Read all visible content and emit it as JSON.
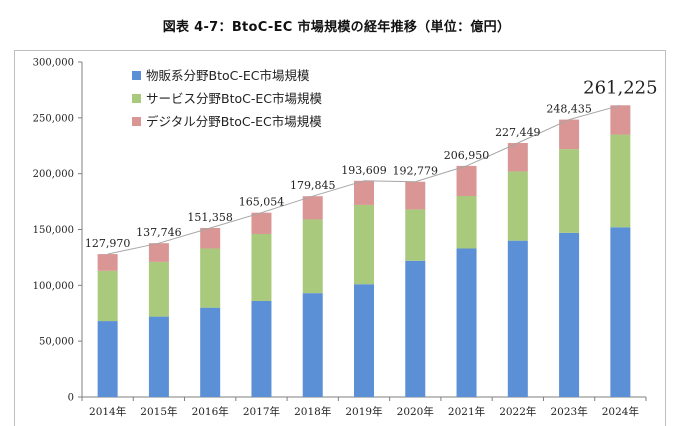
{
  "page_title": "図表 4-7：BtoC-EC 市場規模の経年推移（単位：億円）",
  "chart_data": {
    "type": "bar",
    "stacked": true,
    "title": "図表 4-7：BtoC-EC 市場規模の経年推移（単位：億円）",
    "xlabel": "",
    "ylabel": "",
    "ylim": [
      0,
      300000
    ],
    "yticks": [
      0,
      50000,
      100000,
      150000,
      200000,
      250000,
      300000
    ],
    "ytick_labels": [
      "0",
      "50,000",
      "100,000",
      "150,000",
      "200,000",
      "250,000",
      "300,000"
    ],
    "categories": [
      "2014年",
      "2015年",
      "2016年",
      "2017年",
      "2018年",
      "2019年",
      "2020年",
      "2021年",
      "2022年",
      "2023年",
      "2024年"
    ],
    "series": [
      {
        "name": "物販系分野BtoC-EC市場規模",
        "color": "#5b8fd6",
        "values": [
          68000,
          72000,
          80000,
          86000,
          93000,
          101000,
          122000,
          133000,
          140000,
          147000,
          152000
        ]
      },
      {
        "name": "サービス分野BtoC-EC市場規模",
        "color": "#a9c97c",
        "values": [
          45000,
          49000,
          53000,
          60000,
          66000,
          71000,
          46000,
          47000,
          62000,
          75000,
          83000
        ]
      },
      {
        "name": "デジタル分野BtoC-EC市場規模",
        "color": "#d99694",
        "values": [
          14970,
          16746,
          18358,
          19054,
          20845,
          21609,
          24779,
          26950,
          25449,
          26435,
          26225
        ]
      }
    ],
    "totals": [
      127970,
      137746,
      151358,
      165054,
      179845,
      193609,
      192779,
      206950,
      227449,
      248435,
      261225
    ],
    "total_labels": [
      "127,970",
      "137,746",
      "151,358",
      "165,054",
      "179,845",
      "193,609",
      "192,779",
      "206,950",
      "227,449",
      "248,435",
      "261,225"
    ],
    "legend_position": "top-left"
  }
}
